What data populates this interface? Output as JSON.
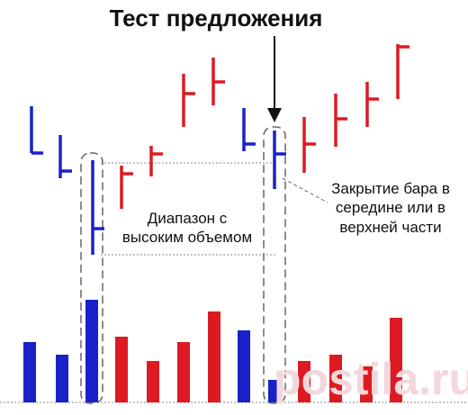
{
  "title": "Тест предложения",
  "labels": {
    "range_line1": "Диапазон с",
    "range_line2": "высоким объемом",
    "close_line1": "Закрытие бара в",
    "close_line2": "середине или в",
    "close_line3": "верхней части"
  },
  "colors": {
    "up": "#dd1a22",
    "down": "#1822c8",
    "annotation": "#666666",
    "guide": "#888888",
    "arrow": "#111111",
    "text": "#111111",
    "watermark": "#f4d7db"
  },
  "watermark_text": "postila.ru"
}
